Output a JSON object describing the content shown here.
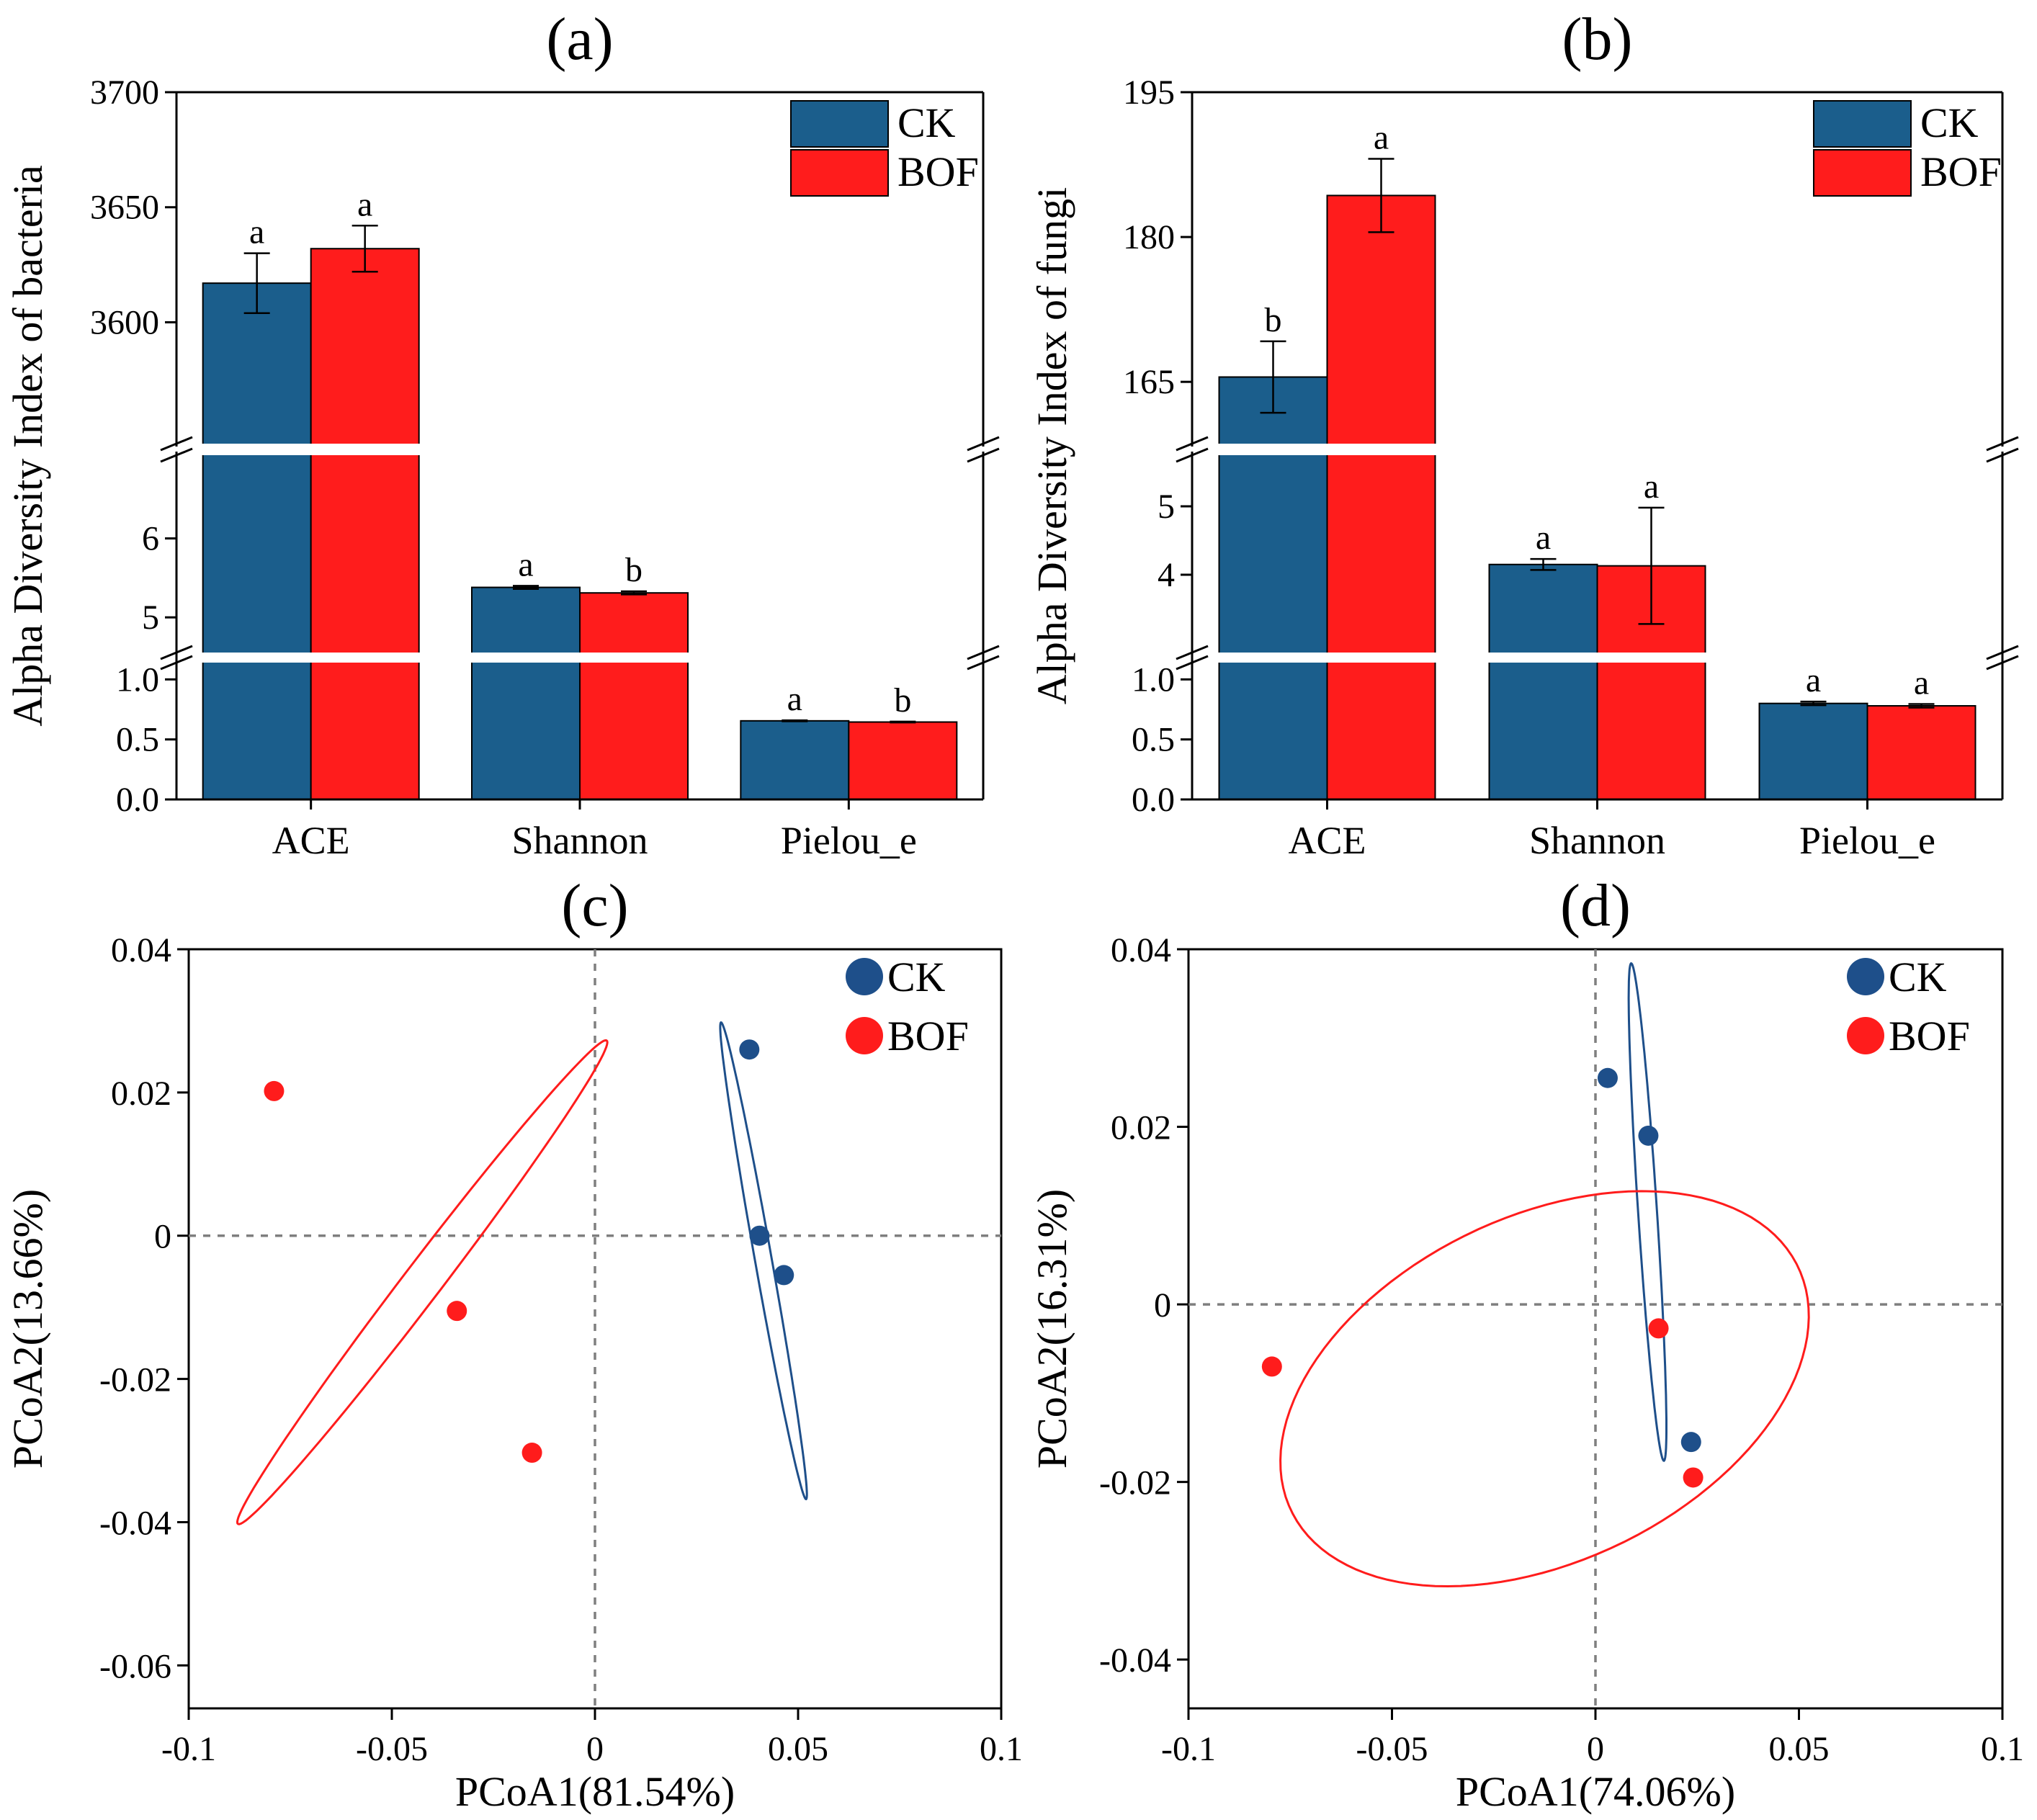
{
  "colors": {
    "ck": "#1B5E8C",
    "bof": "#FF1C1C",
    "ck_ring": "#1E4F8A",
    "axis": "#000000",
    "zero_line": "#7F7F7F"
  },
  "legend": {
    "ck": "CK",
    "bof": "BOF"
  },
  "chart_data": [
    {
      "id": "a",
      "type": "bar",
      "title": "(a)",
      "ylabel": "Alpha Diversity Index of bacteria",
      "categories": [
        "ACE",
        "Shannon",
        "Pielou_e"
      ],
      "series": [
        {
          "name": "CK",
          "values": [
            3617,
            5.38,
            0.655
          ],
          "errors": [
            13,
            0.02,
            0.004
          ],
          "letters": [
            "a",
            "a",
            "a"
          ]
        },
        {
          "name": "BOF",
          "values": [
            3632,
            5.31,
            0.645
          ],
          "errors": [
            10,
            0.02,
            0.004
          ],
          "letters": [
            "a",
            "b",
            "b"
          ]
        }
      ],
      "segments": [
        {
          "range": [
            0,
            1.2
          ],
          "ticks": [
            0.0,
            0.5,
            1.0
          ],
          "tick_labels": [
            "0.0",
            "0.5",
            "1.0"
          ]
        },
        {
          "range": [
            4.5,
            7.1
          ],
          "ticks": [
            5,
            6
          ],
          "tick_labels": [
            "5",
            "6"
          ]
        },
        {
          "range": [
            3546,
            3700
          ],
          "ticks": [
            3600,
            3650,
            3700
          ],
          "tick_labels": [
            "3600",
            "3650",
            "3700"
          ]
        }
      ]
    },
    {
      "id": "b",
      "type": "bar",
      "title": "(b)",
      "ylabel": "Alpha Diversity Index of fungi",
      "categories": [
        "ACE",
        "Shannon",
        "Pielou_e"
      ],
      "series": [
        {
          "name": "CK",
          "values": [
            165.5,
            4.15,
            0.8
          ],
          "errors": [
            3.7,
            0.08,
            0.015
          ],
          "letters": [
            "b",
            "a",
            "a"
          ]
        },
        {
          "name": "BOF",
          "values": [
            184.3,
            4.13,
            0.78
          ],
          "errors": [
            3.8,
            0.85,
            0.015
          ],
          "letters": [
            "a",
            "a",
            "a"
          ]
        }
      ],
      "segments": [
        {
          "range": [
            0,
            1.2
          ],
          "ticks": [
            0.0,
            0.5,
            1.0
          ],
          "tick_labels": [
            "0.0",
            "0.5",
            "1.0"
          ]
        },
        {
          "range": [
            2.8,
            5.8
          ],
          "ticks": [
            4,
            5
          ],
          "tick_labels": [
            "4",
            "5"
          ]
        },
        {
          "range": [
            158.3,
            195
          ],
          "ticks": [
            165,
            180,
            195
          ],
          "tick_labels": [
            "165",
            "180",
            "195"
          ]
        }
      ]
    },
    {
      "id": "c",
      "type": "scatter",
      "title": "(c)",
      "xlabel": "PCoA1(81.54%)",
      "ylabel": "PCoA2(13.66%)",
      "xlim": [
        -0.1,
        0.1
      ],
      "ylim": [
        -0.066,
        0.04
      ],
      "xticks": [
        -0.1,
        -0.05,
        0,
        0.05,
        0.1
      ],
      "xtick_labels": [
        "-0.1",
        "-0.05",
        "0",
        "0.05",
        "0.1"
      ],
      "yticks": [
        0.04,
        0.02,
        0,
        -0.02,
        -0.04,
        -0.06
      ],
      "ytick_labels": [
        "0.04",
        "0.02",
        "0",
        "-0.02",
        "-0.04",
        "-0.06"
      ],
      "series": [
        {
          "name": "CK",
          "points": [
            [
              0.038,
              0.026
            ],
            [
              0.0405,
              0.0
            ],
            [
              0.0465,
              -0.0055
            ]
          ]
        },
        {
          "name": "BOF",
          "points": [
            [
              -0.079,
              0.0202
            ],
            [
              -0.034,
              -0.0105
            ],
            [
              -0.0155,
              -0.0303
            ]
          ]
        }
      ],
      "ellipses": [
        {
          "name": "CK",
          "center": [
            0.0415,
            -0.0035
          ],
          "rx": 0.0349,
          "ry": 0.002,
          "angle_deg": -72.5
        },
        {
          "name": "BOF",
          "center": [
            -0.0425,
            -0.0065
          ],
          "rx": 0.0566,
          "ry": 0.0035,
          "angle_deg": 36.5
        }
      ]
    },
    {
      "id": "d",
      "type": "scatter",
      "title": "(d)",
      "xlabel": "PCoA1(74.06%)",
      "ylabel": "PCoA2(16.31%)",
      "xlim": [
        -0.1,
        0.1
      ],
      "ylim": [
        -0.0455,
        0.04
      ],
      "xticks": [
        -0.1,
        -0.05,
        0,
        0.05,
        0.1
      ],
      "xtick_labels": [
        "-0.1",
        "-0.05",
        "0",
        "0.05",
        "0.1"
      ],
      "yticks": [
        0.04,
        0.02,
        0,
        -0.02,
        -0.04
      ],
      "ytick_labels": [
        "0.04",
        "0.02",
        "0",
        "-0.02",
        "-0.04"
      ],
      "series": [
        {
          "name": "CK",
          "points": [
            [
              0.003,
              0.0255
            ],
            [
              0.013,
              0.019
            ],
            [
              0.0235,
              -0.0155
            ]
          ]
        },
        {
          "name": "BOF",
          "points": [
            [
              -0.0795,
              -0.007
            ],
            [
              0.0155,
              -0.0027
            ],
            [
              0.024,
              -0.0195
            ]
          ]
        }
      ],
      "ellipses": [
        {
          "name": "CK",
          "center": [
            0.0128,
            0.0104
          ],
          "rx": 0.0283,
          "ry": 0.0023,
          "angle_deg": -81.8
        },
        {
          "name": "BOF",
          "center": [
            -0.0125,
            -0.0095
          ],
          "rx": 0.0655,
          "ry": 0.0205,
          "angle_deg": 8
        }
      ]
    }
  ]
}
